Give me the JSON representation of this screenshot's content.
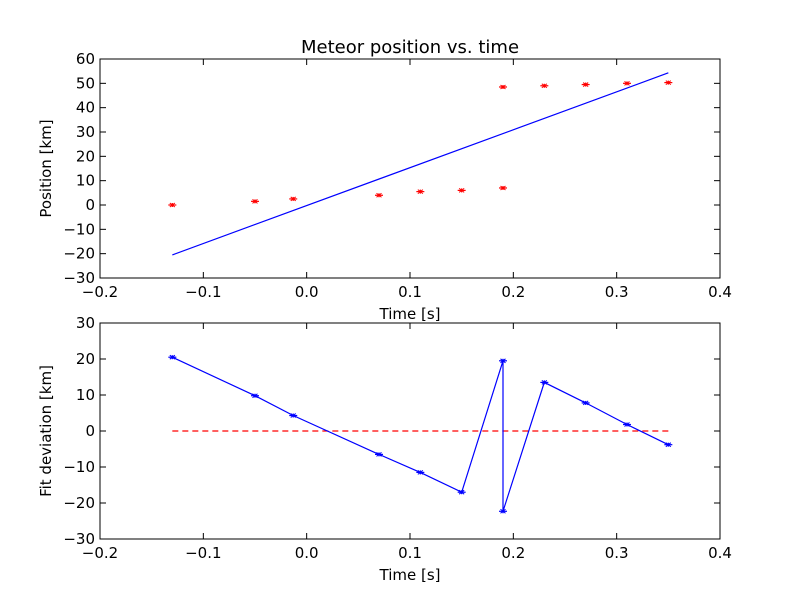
{
  "chart_data": [
    {
      "type": "scatter",
      "title": "Meteor position vs. time",
      "xlabel": "Time [s]",
      "ylabel": "Position [km]",
      "xlim": [
        -0.2,
        0.4
      ],
      "ylim": [
        -30,
        60
      ],
      "xticks": [
        "−0.2",
        "−0.1",
        "0.0",
        "0.1",
        "0.2",
        "0.3",
        "0.4"
      ],
      "yticks": [
        "−30",
        "−20",
        "−10",
        "0",
        "10",
        "20",
        "30",
        "40",
        "50",
        "60"
      ],
      "grid": false,
      "colors": {
        "points": "#ff0000",
        "fit": "#0000ff"
      },
      "points": {
        "x": [
          -0.13,
          -0.05,
          -0.013,
          0.07,
          0.11,
          0.15,
          0.19,
          0.19,
          0.23,
          0.27,
          0.31,
          0.35
        ],
        "y": [
          0.0,
          1.5,
          2.5,
          4.0,
          5.5,
          6.0,
          7.0,
          48.5,
          49.0,
          49.5,
          50.0,
          50.3
        ]
      },
      "fit_line": {
        "x": [
          -0.13,
          0.35
        ],
        "y": [
          -20.5,
          54.3
        ]
      }
    },
    {
      "type": "line",
      "xlabel": "Time [s]",
      "ylabel": "Fit deviation [km]",
      "xlim": [
        -0.2,
        0.4
      ],
      "ylim": [
        -30,
        30
      ],
      "xticks": [
        "−0.2",
        "−0.1",
        "0.0",
        "0.1",
        "0.2",
        "0.3",
        "0.4"
      ],
      "yticks": [
        "−30",
        "−20",
        "−10",
        "0",
        "10",
        "20",
        "30"
      ],
      "grid": false,
      "colors": {
        "series": "#0000ff",
        "zero_line": "#ff0000"
      },
      "series": {
        "x": [
          -0.13,
          -0.05,
          -0.013,
          0.07,
          0.11,
          0.15,
          0.19,
          0.19,
          0.23,
          0.27,
          0.31,
          0.35
        ],
        "y": [
          20.5,
          9.8,
          4.3,
          -6.5,
          -11.5,
          -17.0,
          19.5,
          -22.3,
          13.5,
          7.8,
          1.8,
          -3.8
        ]
      },
      "zero_line": {
        "x": [
          -0.13,
          0.35
        ],
        "y": [
          0,
          0
        ]
      }
    }
  ]
}
